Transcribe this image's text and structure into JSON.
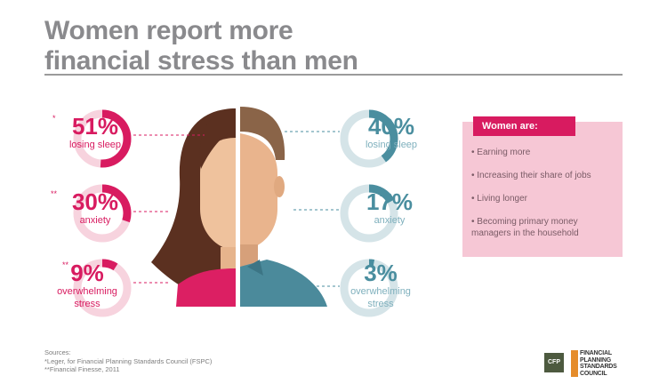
{
  "title": {
    "line1": "Women report more",
    "line2": "financial stress than men"
  },
  "women": [
    {
      "marker": "*",
      "percent": "51%",
      "value": 51,
      "label": "losing sleep"
    },
    {
      "marker": "**",
      "percent": "30%",
      "value": 30,
      "label": "anxiety"
    },
    {
      "marker": "**",
      "percent": "9%",
      "value": 9,
      "label": "overwhelming stress"
    }
  ],
  "men": [
    {
      "percent": "40%",
      "value": 40,
      "label": "losing sleep"
    },
    {
      "percent": "17%",
      "value": 17,
      "label": "anxiety"
    },
    {
      "percent": "3%",
      "value": 3,
      "label": "overwhelming stress"
    }
  ],
  "panel": {
    "heading": "Women are:",
    "items": [
      "Earning more",
      "Increasing their share of jobs",
      "Living longer",
      "Becoming primary money managers in the household"
    ]
  },
  "sources": {
    "heading": "Sources:",
    "line1": "*Leger, for Financial Planning Standards Council (FSPC)",
    "line2": "**Financial Finesse, 2011"
  },
  "logo": {
    "mark": "CFP",
    "line1": "FINANCIAL",
    "line2": "PLANNING",
    "line3": "STANDARDS",
    "line4": "COUNCIL"
  },
  "colors": {
    "women": "#d81b60",
    "women_track": "#f7d3de",
    "men": "#4a8e9f",
    "men_track": "#d5e4e8"
  }
}
